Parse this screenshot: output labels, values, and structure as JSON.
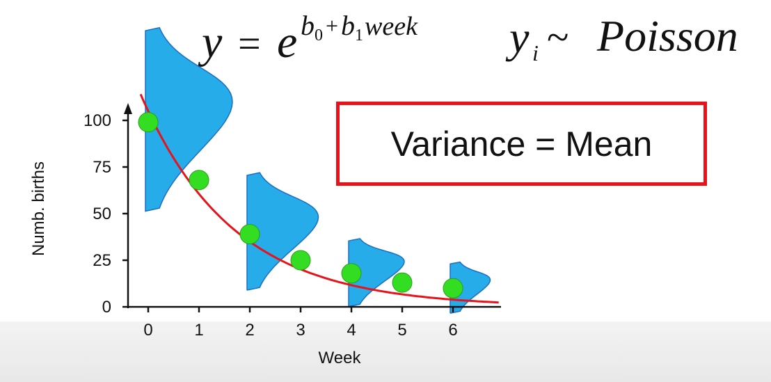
{
  "formula": {
    "y": "y",
    "equals": "=",
    "e": "e",
    "exp_b0": "b",
    "exp_b0_sub": "0",
    "exp_plus": "+",
    "exp_b1": "b",
    "exp_b1_sub": "1",
    "exp_week": "week",
    "yi": "y",
    "yi_sub": "i",
    "tilde": "~",
    "dist": "Poisson"
  },
  "callout": {
    "text": "Variance = Mean",
    "border_color": "#e8121b"
  },
  "colors": {
    "curve": "#e8121b",
    "points": "#33dd22",
    "distributions": "#1aa8e8",
    "distribution_outline": "#1565c0",
    "axes": "#111111"
  },
  "chart_data": {
    "type": "scatter",
    "title": "",
    "xlabel": "Week",
    "ylabel": "Numb. births",
    "xlim": [
      -0.4,
      6.8
    ],
    "ylim": [
      0,
      110
    ],
    "x_ticks": [
      0,
      1,
      2,
      3,
      4,
      5,
      6
    ],
    "y_ticks": [
      0,
      25,
      50,
      75,
      100
    ],
    "points": [
      {
        "x": 0,
        "y": 99
      },
      {
        "x": 1,
        "y": 68
      },
      {
        "x": 2,
        "y": 39
      },
      {
        "x": 3,
        "y": 25
      },
      {
        "x": 4,
        "y": 18
      },
      {
        "x": 5,
        "y": 13
      },
      {
        "x": 6,
        "y": 10
      }
    ],
    "fitted_curve": {
      "model": "exponential",
      "a": 105,
      "b": -0.55,
      "x_range": [
        -0.15,
        6.9
      ]
    },
    "distributions": [
      {
        "x": 0,
        "mean": 100,
        "sd": 22
      },
      {
        "x": 2,
        "mean": 40,
        "sd": 14
      },
      {
        "x": 4,
        "mean": 18,
        "sd": 8
      },
      {
        "x": 6,
        "mean": 10,
        "sd": 6
      }
    ],
    "grid": false,
    "legend": "none"
  }
}
